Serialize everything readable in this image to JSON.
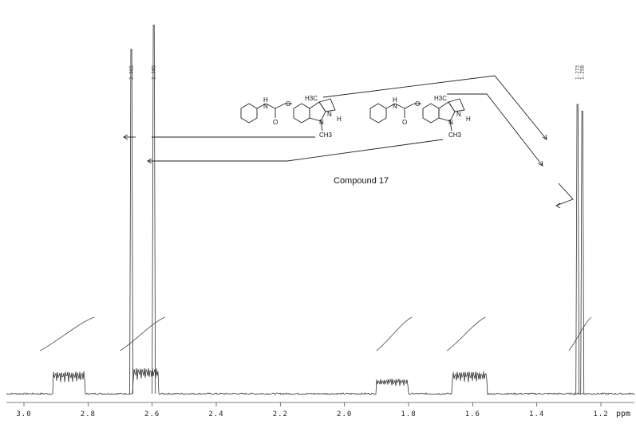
{
  "chart_data": {
    "type": "line",
    "xlim": [
      3.0,
      1.1
    ],
    "x_reversed": true,
    "x_ticks": [
      3.0,
      2.8,
      2.6,
      2.4,
      2.2,
      2.0,
      1.8,
      1.6,
      1.4,
      1.2
    ],
    "x_tick_labels": [
      "3.0",
      "2.8",
      "2.6",
      "2.4",
      "2.2",
      "2.0",
      "1.8",
      "1.6",
      "1.4",
      "1.2"
    ],
    "xlabel": "ppm",
    "peak_labels": [
      "2.665",
      "2.595",
      "1.273",
      "1.258"
    ],
    "annotation": "Compound 17",
    "atoms": {
      "h3c": "H3C",
      "nh_n": "N",
      "nh_h": "H",
      "me_n": "N",
      "me": "CH3",
      "o": "O",
      "o2": "O",
      "h": "H",
      "n": "N"
    },
    "peaks": [
      {
        "ppm": 2.665,
        "height": 1.0
      },
      {
        "ppm": 2.595,
        "height": 1.07
      },
      {
        "ppm": 1.273,
        "height": 0.84
      },
      {
        "ppm": 1.258,
        "height": 0.82
      }
    ],
    "multiplets": [
      {
        "center": 2.86,
        "width": 0.1,
        "height": 0.06
      },
      {
        "center": 2.62,
        "width": 0.08,
        "height": 0.07
      },
      {
        "center": 1.85,
        "width": 0.1,
        "height": 0.04
      },
      {
        "center": 1.61,
        "width": 0.11,
        "height": 0.06
      }
    ],
    "integrals": [
      {
        "start": 2.95,
        "end": 2.78
      },
      {
        "start": 2.7,
        "end": 2.56
      },
      {
        "start": 1.9,
        "end": 1.79
      },
      {
        "start": 1.68,
        "end": 1.56
      },
      {
        "start": 1.3,
        "end": 1.23
      }
    ]
  }
}
